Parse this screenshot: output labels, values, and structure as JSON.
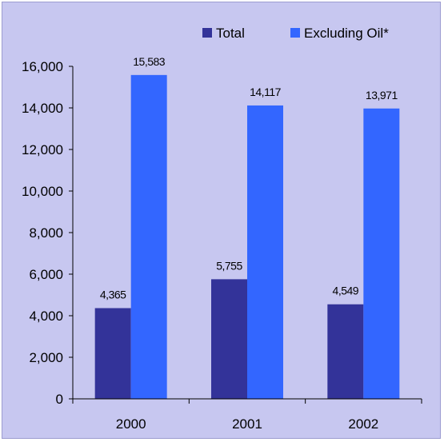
{
  "chart_data": {
    "type": "bar",
    "categories": [
      "2000",
      "2001",
      "2002"
    ],
    "series": [
      {
        "name": "Total",
        "values": [
          4365,
          5755,
          4549
        ],
        "color": "#333399",
        "labels": [
          "4,365",
          "5,755",
          "4,549"
        ]
      },
      {
        "name": "Excluding Oil*",
        "values": [
          15583,
          14117,
          13971
        ],
        "color": "#3366ff",
        "labels": [
          "15,583",
          "14,117",
          "13,971"
        ]
      }
    ],
    "ylim": [
      0,
      16000
    ],
    "yticks": [
      0,
      2000,
      4000,
      6000,
      8000,
      10000,
      12000,
      14000,
      16000
    ],
    "ytick_labels": [
      "0",
      "2,000",
      "4,000",
      "6,000",
      "8,000",
      "10,000",
      "12,000",
      "14,000",
      "16,000"
    ],
    "grid": false,
    "legend": "top",
    "title": "",
    "xlabel": "",
    "ylabel": "",
    "background": "#c7c7f0"
  }
}
